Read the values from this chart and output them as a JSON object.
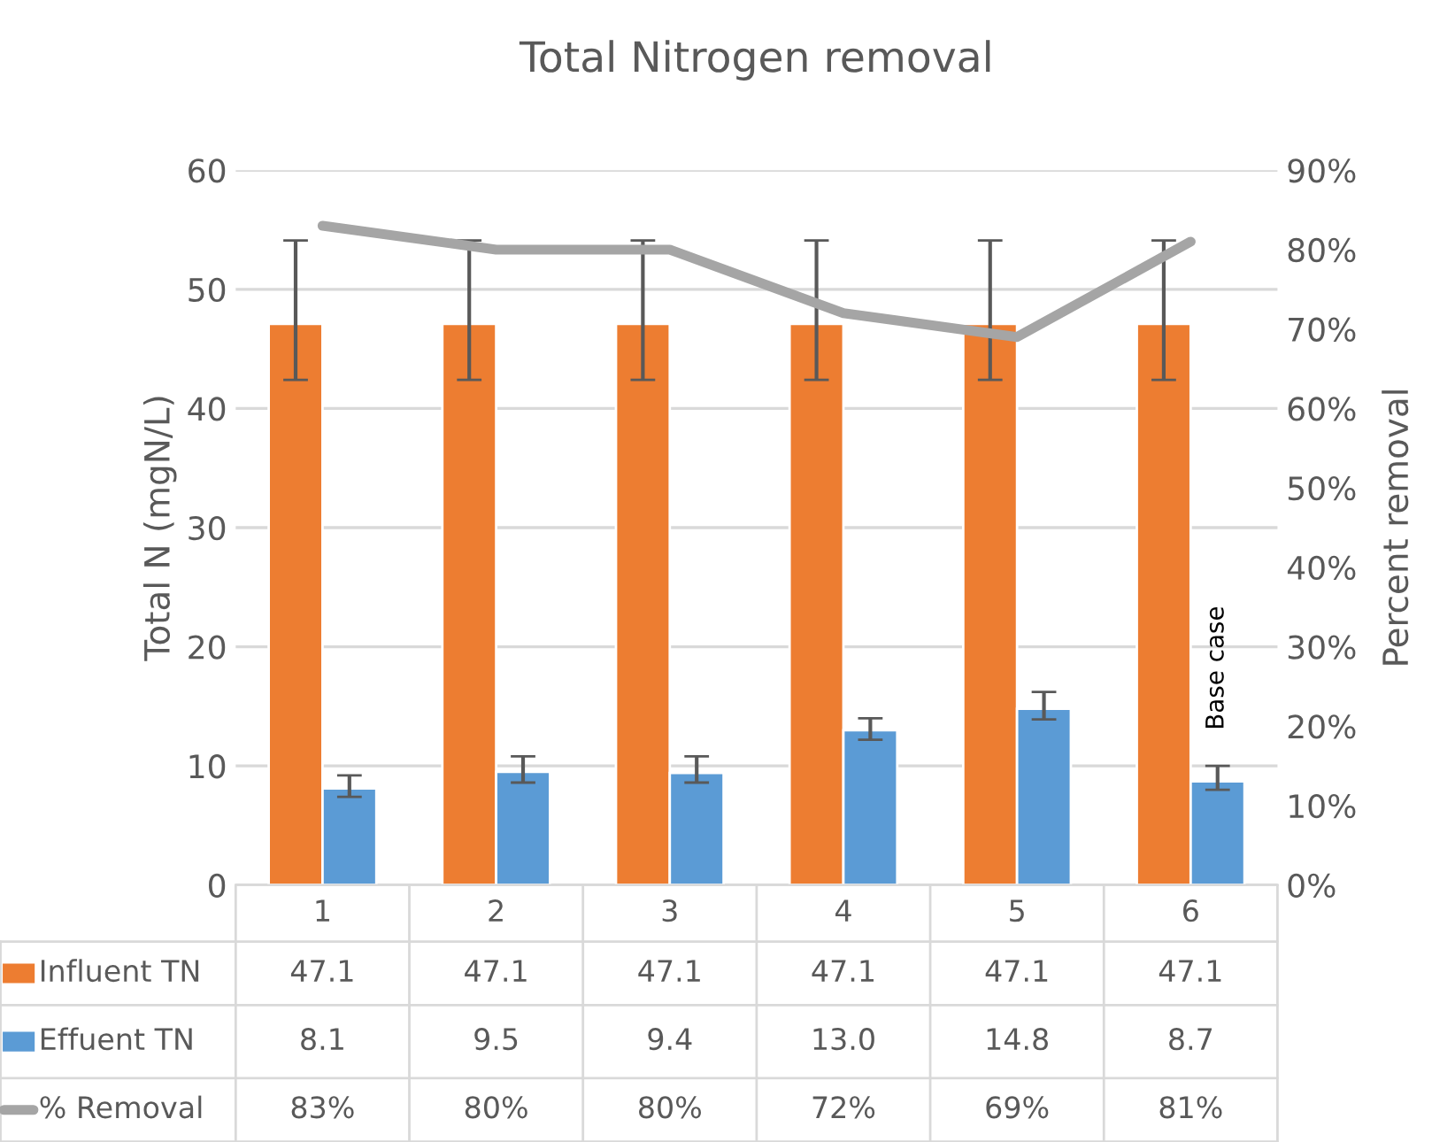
{
  "chart_data": {
    "type": "bar",
    "title": "Total Nitrogen removal",
    "ylabel": "Total N (mgN/L)",
    "y2label": "Percent removal",
    "categories": [
      "1",
      "2",
      "3",
      "4",
      "5",
      "6"
    ],
    "series": [
      {
        "name": "Influent TN",
        "color": "#ed7d31",
        "values": [
          47.1,
          47.1,
          47.1,
          47.1,
          47.1,
          47.1
        ],
        "value_labels": [
          "47.1",
          "47.1",
          "47.1",
          "47.1",
          "47.1",
          "47.1"
        ],
        "errors": [
          [
            42.4,
            54.1
          ],
          [
            42.4,
            54.1
          ],
          [
            42.4,
            54.1
          ],
          [
            42.4,
            54.1
          ],
          [
            42.4,
            54.1
          ],
          [
            42.4,
            54.1
          ]
        ]
      },
      {
        "name": "Effuent TN",
        "color": "#5b9bd5",
        "values": [
          8.1,
          9.5,
          9.4,
          13.0,
          14.8,
          8.7
        ],
        "value_labels": [
          "8.1",
          "9.5",
          "9.4",
          "13.0",
          "14.8",
          "8.7"
        ],
        "errors": [
          [
            7.4,
            9.2
          ],
          [
            8.6,
            10.8
          ],
          [
            8.6,
            10.8
          ],
          [
            12.2,
            14.0
          ],
          [
            13.9,
            16.2
          ],
          [
            8.0,
            10.0
          ]
        ]
      },
      {
        "name": "% Removal",
        "type": "line",
        "axis": "y2",
        "color": "#a5a5a5",
        "values": [
          83,
          80,
          80,
          72,
          69,
          81
        ],
        "value_labels": [
          "83%",
          "80%",
          "80%",
          "72%",
          "69%",
          "81%"
        ]
      }
    ],
    "ylim": [
      0,
      60
    ],
    "yticks": [
      0,
      10,
      20,
      30,
      40,
      50,
      60
    ],
    "y2lim": [
      0,
      90
    ],
    "y2ticks": [
      {
        "value": 0,
        "label": "0%"
      },
      {
        "value": 10,
        "label": "10%"
      },
      {
        "value": 20,
        "label": "20%"
      },
      {
        "value": 30,
        "label": "30%"
      },
      {
        "value": 40,
        "label": "40%"
      },
      {
        "value": 50,
        "label": "50%"
      },
      {
        "value": 60,
        "label": "60%"
      },
      {
        "value": 70,
        "label": "70%"
      },
      {
        "value": 80,
        "label": "80%"
      },
      {
        "value": 90,
        "label": "90%"
      }
    ],
    "grid": "y",
    "legend": "bottom",
    "marker": "none",
    "line_style": "solid",
    "annotations": [
      {
        "text": "Base case",
        "x": "6",
        "y": 13
      }
    ]
  }
}
